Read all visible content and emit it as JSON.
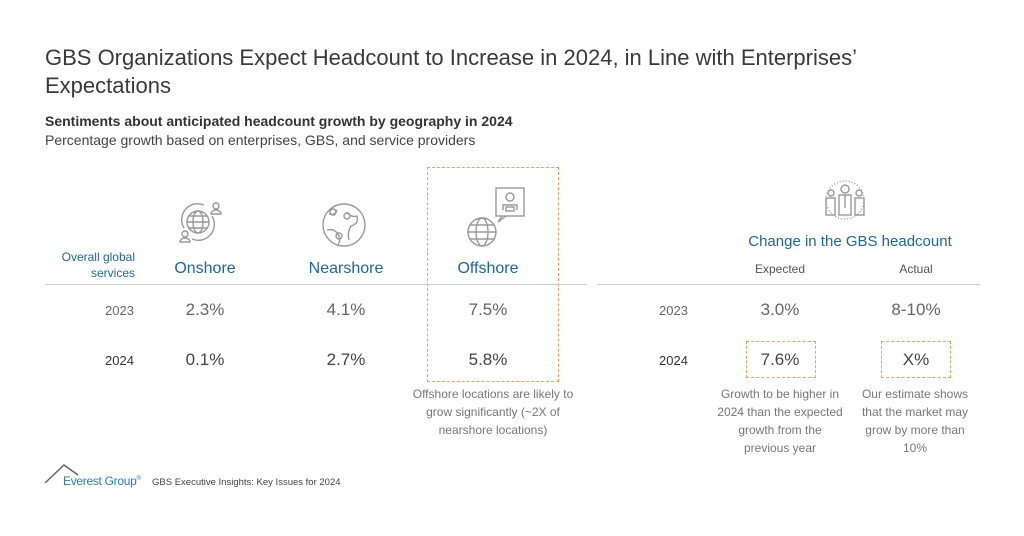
{
  "title": "GBS Organizations Expect Headcount to Increase in 2024, in Line with Enterprises’ Expectations",
  "subtitle": "Sentiments about anticipated headcount growth by geography in 2024",
  "description": "Percentage growth based on enterprises, GBS, and service providers",
  "left_table": {
    "row_header": "Overall global services",
    "columns": [
      {
        "label": "Onshore",
        "icon": "globe-people-cycle-icon"
      },
      {
        "label": "Nearshore",
        "icon": "globe-pins-icon"
      },
      {
        "label": "Offshore",
        "icon": "globe-remote-worker-icon"
      }
    ],
    "rows": [
      {
        "year": "2023",
        "values": [
          "2.3%",
          "4.1%",
          "7.5%"
        ]
      },
      {
        "year": "2024",
        "values": [
          "0.1%",
          "2.7%",
          "5.8%"
        ]
      }
    ],
    "highlight_color": "#f0a060",
    "offshore_note": "Offshore locations are likely to grow significantly (~2X of nearshore locations)"
  },
  "right_table": {
    "icon": "team-icon",
    "title": "Change in the GBS headcount",
    "columns": [
      "Expected",
      "Actual"
    ],
    "rows": [
      {
        "year": "2023",
        "values": [
          "3.0%",
          "8-10%"
        ]
      },
      {
        "year": "2024",
        "values": [
          "7.6%",
          "X%"
        ]
      }
    ],
    "expected_note": "Growth to be higher in 2024 than the expected growth from the previous year",
    "actual_note": "Our estimate shows that the market may grow by more than 10%"
  },
  "footer": {
    "logo": "Everest Group®",
    "text": "GBS Executive Insights: Key Issues for 2024"
  },
  "colors": {
    "accent_blue": "#1f6795",
    "highlight_orange": "#f0a060"
  }
}
